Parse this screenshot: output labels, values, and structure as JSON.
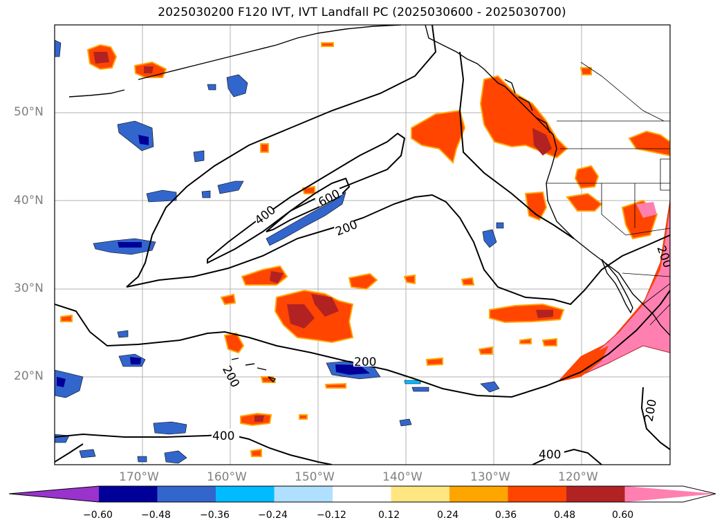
{
  "title": "2025030200 F120 IVT, IVT Landfall PC (2025030600 - 2025030700)",
  "lat_labels": [
    "50°N",
    "40°N",
    "30°N",
    "20°N"
  ],
  "lon_labels": [
    "170°W",
    "160°W",
    "150°W",
    "140°W",
    "130°W",
    "120°W"
  ],
  "contour_labels": [
    "600",
    "400",
    "200",
    "200",
    "200",
    "400",
    "400",
    "200",
    "200"
  ],
  "colorbar": {
    "ticks": [
      "−0.60",
      "−0.48",
      "−0.36",
      "−0.24",
      "−0.12",
      "0.12",
      "0.24",
      "0.36",
      "0.48",
      "0.60"
    ],
    "colors": [
      "#9933cc",
      "#000099",
      "#3366cc",
      "#00bbff",
      "#b0e0ff",
      "#ffffff",
      "#ffe680",
      "#ffa500",
      "#ff4500",
      "#b22222",
      "#ff80b0"
    ]
  },
  "palette": {
    "light_yellow": "#ffe680",
    "orange": "#ffa500",
    "red_orange": "#ff4500",
    "dark_red": "#b22222",
    "pink": "#ff80b0",
    "navy": "#000099",
    "royal_blue": "#3366cc",
    "sky_blue": "#00bbff",
    "pale_blue": "#b0e0ff"
  }
}
